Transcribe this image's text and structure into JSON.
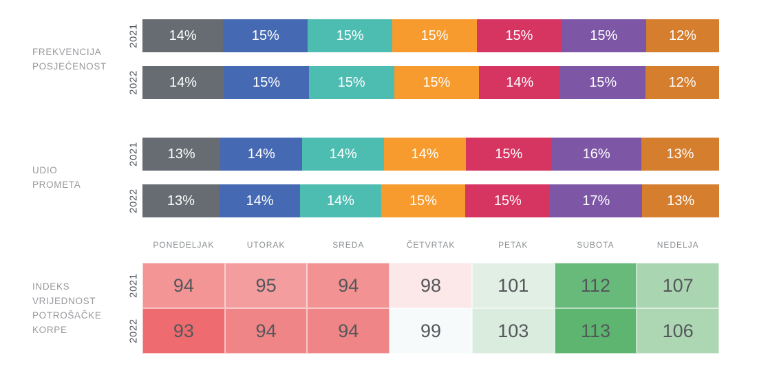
{
  "palette": {
    "weekday_segment_colors": [
      "#666c72",
      "#4569b2",
      "#4dbdb2",
      "#f79b2e",
      "#d63461",
      "#7d56a5",
      "#d47e2e"
    ],
    "section_label_color": "#96989b",
    "year_label_color": "#51565b",
    "day_header_color": "#8c8f92",
    "bar_value_text_color": "#ffffff",
    "heatmap_value_text_color": "#54575a",
    "background": "#ffffff"
  },
  "weekdays": [
    "PONEDELJAK",
    "UTORAK",
    "SREDA",
    "ČETVRTAK",
    "PETAK",
    "SUBOTA",
    "NEDELJA"
  ],
  "chart_data": [
    {
      "type": "bar",
      "subtype": "stacked-horizontal-100pct",
      "title": "FREKVENCIJA POSJEĆENOST",
      "title_multiline": "FREKVENCIJA\nPOSJEĆENOST",
      "categories": [
        "PONEDELJAK",
        "UTORAK",
        "SREDA",
        "ČETVRTAK",
        "PETAK",
        "SUBOTA",
        "NEDELJA"
      ],
      "value_suffix": "%",
      "legend_position": "none",
      "series": [
        {
          "name": "2021",
          "values": [
            14,
            15,
            15,
            15,
            15,
            15,
            12
          ]
        },
        {
          "name": "2022",
          "values": [
            14,
            15,
            15,
            15,
            14,
            15,
            12
          ]
        }
      ]
    },
    {
      "type": "bar",
      "subtype": "stacked-horizontal-100pct",
      "title": "UDIO PROMETA",
      "title_multiline": "UDIO\nPROMETA",
      "categories": [
        "PONEDELJAK",
        "UTORAK",
        "SREDA",
        "ČETVRTAK",
        "PETAK",
        "SUBOTA",
        "NEDELJA"
      ],
      "value_suffix": "%",
      "legend_position": "none",
      "series": [
        {
          "name": "2021",
          "values": [
            13,
            14,
            14,
            14,
            15,
            16,
            13
          ]
        },
        {
          "name": "2022",
          "values": [
            13,
            14,
            14,
            15,
            15,
            17,
            13
          ]
        }
      ]
    },
    {
      "type": "heatmap",
      "title": "INDEKS VRIJEDNOST POTROŠAČKE KORPE",
      "title_multiline": "INDEKS\nVRIJEDNOST\nPOTROŠAČKE\nKORPE",
      "columns": [
        "PONEDELJAK",
        "UTORAK",
        "SREDA",
        "ČETVRTAK",
        "PETAK",
        "SUBOTA",
        "NEDELJA"
      ],
      "series": [
        {
          "name": "2021",
          "values": [
            94,
            95,
            94,
            98,
            101,
            112,
            107
          ],
          "cell_colors": [
            "#f39495",
            "#f49d9e",
            "#f39293",
            "#fce8e8",
            "#e1efe4",
            "#68ba7a",
            "#aad5b1"
          ]
        },
        {
          "name": "2022",
          "values": [
            93,
            94,
            94,
            99,
            103,
            113,
            106
          ],
          "cell_colors": [
            "#ee6c6f",
            "#f08587",
            "#f08587",
            "#f7fafb",
            "#d9ecdd",
            "#5db570",
            "#add6b3"
          ]
        }
      ]
    }
  ]
}
